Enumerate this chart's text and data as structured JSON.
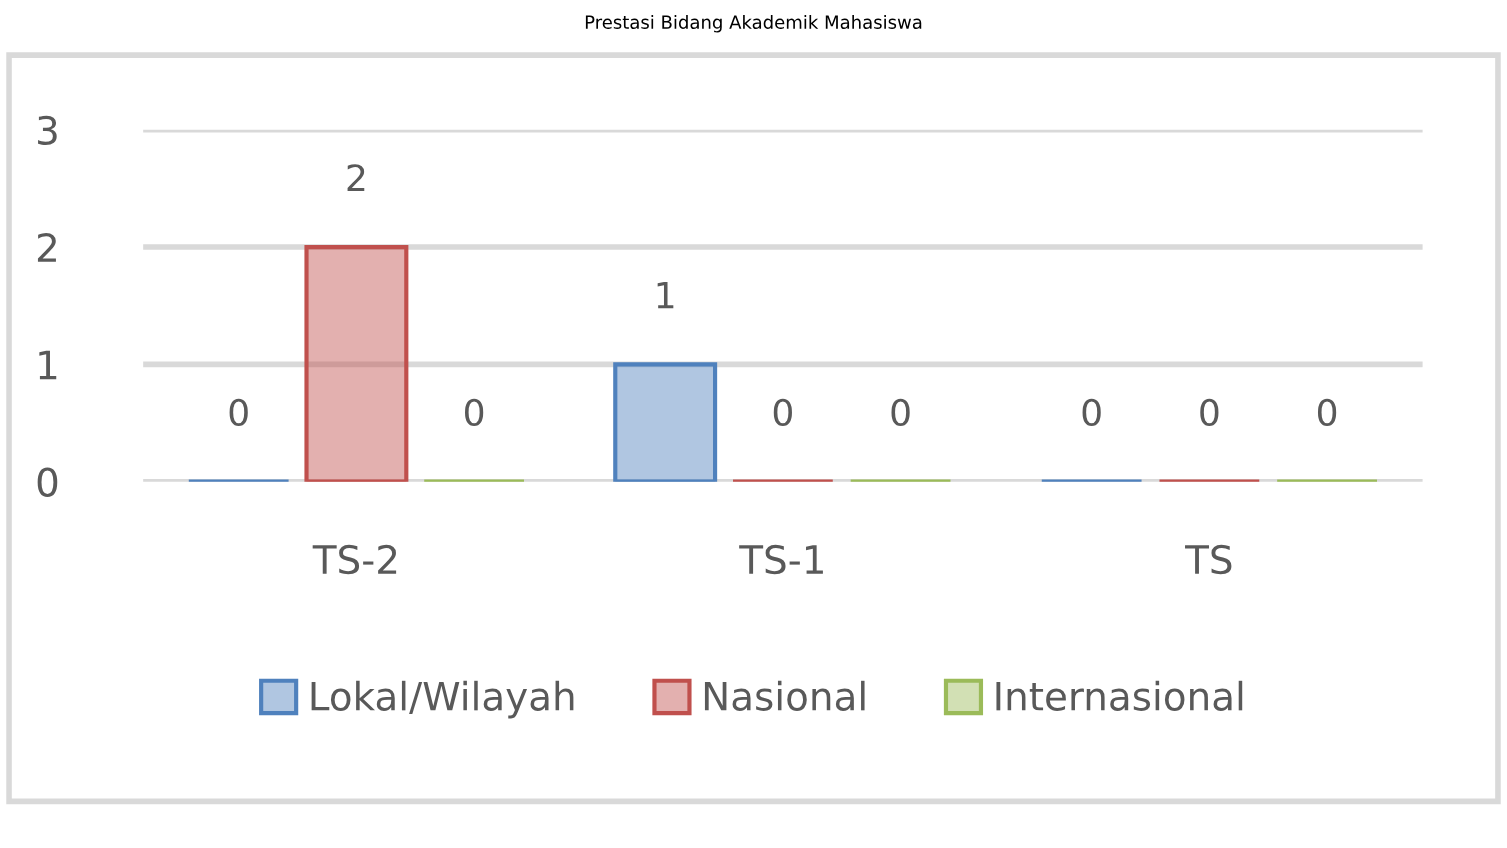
{
  "chart_data": {
    "type": "bar",
    "title": "Prestasi Bidang Akademik Mahasiswa",
    "categories": [
      "TS-2",
      "TS-1",
      "TS"
    ],
    "series": [
      {
        "name": "Lokal/Wilayah",
        "color": "#4f81bd",
        "values": [
          0,
          1,
          0
        ]
      },
      {
        "name": "Nasional",
        "color": "#c0504d",
        "values": [
          2,
          0,
          0
        ]
      },
      {
        "name": "Internasional",
        "color": "#9bbb59",
        "values": [
          0,
          0,
          0
        ]
      }
    ],
    "ylim": [
      0,
      3
    ],
    "yticks": [
      0,
      1,
      2,
      3
    ],
    "grid": "y",
    "legend": "bottom",
    "data_labels": true
  }
}
